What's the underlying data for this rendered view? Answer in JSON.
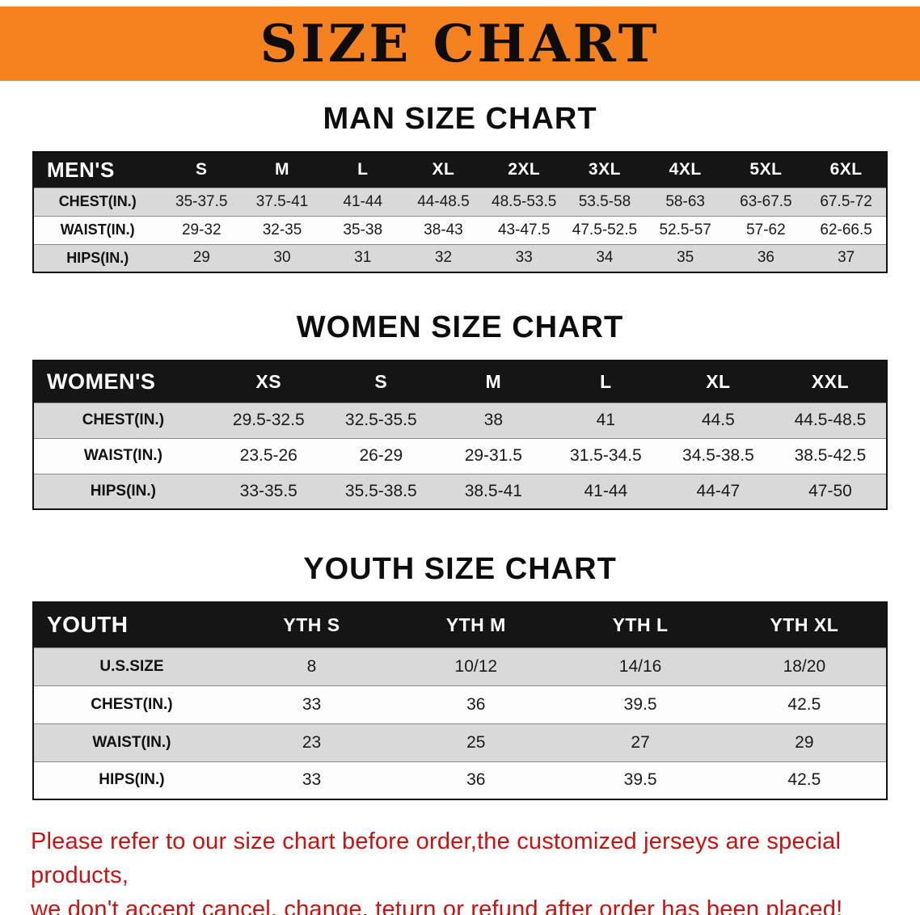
{
  "banner": {
    "title": "SIZE CHART",
    "bg_color": "#f5821f"
  },
  "colors": {
    "header_bg": "#151515",
    "row_alt": "#d9d9d9",
    "disclaimer_red": "#cc1111"
  },
  "chart_data": [
    {
      "type": "table",
      "title": "MAN SIZE CHART",
      "columns": [
        "MEN'S",
        "S",
        "M",
        "L",
        "XL",
        "2XL",
        "3XL",
        "4XL",
        "5XL",
        "6XL"
      ],
      "rows": [
        {
          "label": "CHEST(IN.)",
          "values": [
            "35-37.5",
            "37.5-41",
            "41-44",
            "44-48.5",
            "48.5-53.5",
            "53.5-58",
            "58-63",
            "63-67.5",
            "67.5-72"
          ]
        },
        {
          "label": "WAIST(IN.)",
          "values": [
            "29-32",
            "32-35",
            "35-38",
            "38-43",
            "43-47.5",
            "47.5-52.5",
            "52.5-57",
            "57-62",
            "62-66.5"
          ]
        },
        {
          "label": "HIPS(IN.)",
          "values": [
            "29",
            "30",
            "31",
            "32",
            "33",
            "34",
            "35",
            "36",
            "37"
          ]
        }
      ]
    },
    {
      "type": "table",
      "title": "WOMEN SIZE CHART",
      "columns": [
        "WOMEN'S",
        "XS",
        "S",
        "M",
        "L",
        "XL",
        "XXL"
      ],
      "rows": [
        {
          "label": "CHEST(IN.)",
          "values": [
            "29.5-32.5",
            "32.5-35.5",
            "38",
            "41",
            "44.5",
            "44.5-48.5"
          ]
        },
        {
          "label": "WAIST(IN.)",
          "values": [
            "23.5-26",
            "26-29",
            "29-31.5",
            "31.5-34.5",
            "34.5-38.5",
            "38.5-42.5"
          ]
        },
        {
          "label": "HIPS(IN.)",
          "values": [
            "33-35.5",
            "35.5-38.5",
            "38.5-41",
            "41-44",
            "44-47",
            "47-50"
          ]
        }
      ]
    },
    {
      "type": "table",
      "title": "YOUTH SIZE CHART",
      "columns": [
        "YOUTH",
        "YTH S",
        "YTH M",
        "YTH L",
        "YTH XL"
      ],
      "rows": [
        {
          "label": "U.S.SIZE",
          "values": [
            "8",
            "10/12",
            "14/16",
            "18/20"
          ]
        },
        {
          "label": "CHEST(IN.)",
          "values": [
            "33",
            "36",
            "39.5",
            "42.5"
          ]
        },
        {
          "label": "WAIST(IN.)",
          "values": [
            "23",
            "25",
            "27",
            "29"
          ]
        },
        {
          "label": "HIPS(IN.)",
          "values": [
            "33",
            "36",
            "39.5",
            "42.5"
          ]
        }
      ]
    }
  ],
  "disclaimer": {
    "line1": "Please refer to our size chart before order,the customized jerseys are special products,",
    "line2": "we don't accept cancel, change, teturn or refund after order has been placed!"
  }
}
